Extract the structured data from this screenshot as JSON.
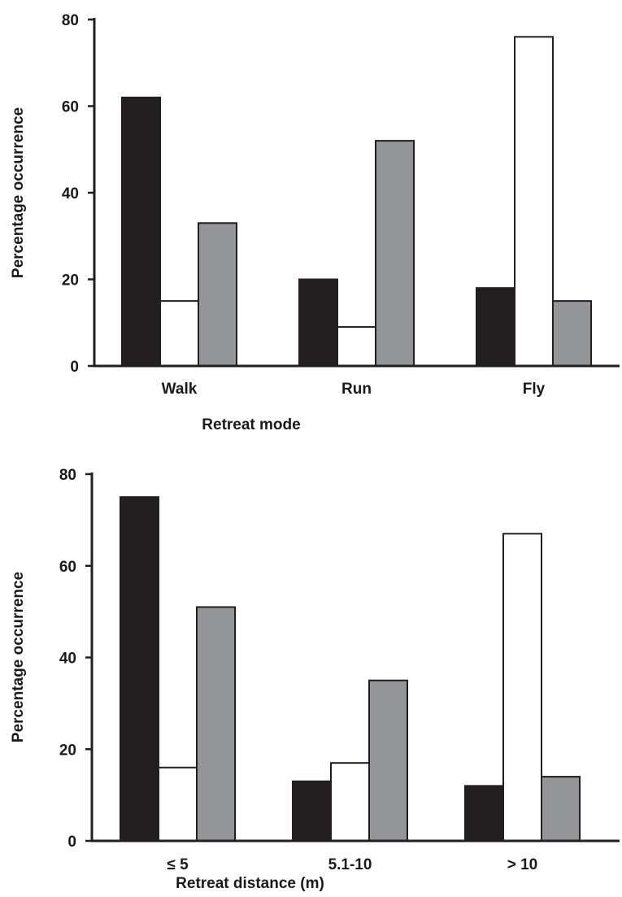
{
  "colors": {
    "series": [
      "#231f20",
      "#ffffff",
      "#939598"
    ],
    "stroke": "#231f20"
  },
  "chart_data": [
    {
      "type": "bar",
      "categories": [
        "Walk",
        "Run",
        "Fly"
      ],
      "series": [
        {
          "values": [
            62,
            20,
            18
          ]
        },
        {
          "values": [
            15,
            9,
            76
          ]
        },
        {
          "values": [
            33,
            52,
            15
          ]
        }
      ],
      "xlabel": "Retreat mode",
      "ylabel": "Percentage occurrence",
      "ylim": [
        0,
        80
      ],
      "yticks": [
        0,
        20,
        40,
        60,
        80
      ],
      "grid": false
    },
    {
      "type": "bar",
      "categories": [
        "≤ 5",
        "5.1-10",
        "> 10"
      ],
      "series": [
        {
          "values": [
            75,
            13,
            12
          ]
        },
        {
          "values": [
            16,
            17,
            67
          ]
        },
        {
          "values": [
            51,
            35,
            14
          ]
        }
      ],
      "xlabel": "Retreat distance (m)",
      "ylabel": "Percentage occurrence",
      "ylim": [
        0,
        80
      ],
      "yticks": [
        0,
        20,
        40,
        60,
        80
      ],
      "grid": false
    }
  ]
}
